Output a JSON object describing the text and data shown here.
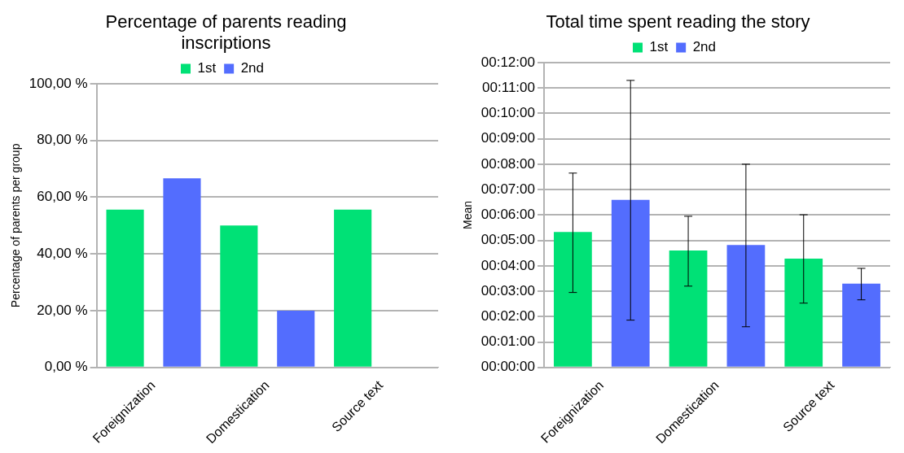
{
  "chart_data": [
    {
      "type": "bar",
      "title": "Percentage of parents reading inscriptions",
      "ylabel": "Percentage of parents per group",
      "categories": [
        "Foreignization",
        "Domestication",
        "Source text"
      ],
      "series": [
        {
          "name": "1st",
          "color": "#00e176",
          "values": [
            55.6,
            50,
            55.6
          ]
        },
        {
          "name": "2nd",
          "color": "#536dfe",
          "values": [
            66.7,
            20,
            0
          ]
        }
      ],
      "ylim": [
        0,
        100
      ],
      "yticks": [
        {
          "value": 0,
          "label": "0,00 %"
        },
        {
          "value": 20,
          "label": "20,00 %"
        },
        {
          "value": 40,
          "label": "40,00 %"
        },
        {
          "value": 60,
          "label": "60,00 %"
        },
        {
          "value": 80,
          "label": "80,00 %"
        },
        {
          "value": 100,
          "label": "100,00 %"
        }
      ],
      "grid": "y",
      "legend": "top"
    },
    {
      "type": "bar",
      "title": "Total time spent reading the story",
      "ylabel": "Mean",
      "categories": [
        "Foreignization",
        "Domestication",
        "Source text"
      ],
      "series": [
        {
          "name": "1st",
          "color": "#00e176",
          "values": [
            5.33,
            4.6,
            4.28
          ],
          "errors": [
            [
              2.95,
              7.65
            ],
            [
              3.2,
              5.95
            ],
            [
              2.53,
              6.01
            ]
          ]
        },
        {
          "name": "2nd",
          "color": "#536dfe",
          "values": [
            6.6,
            4.82,
            3.3
          ],
          "errors": [
            [
              1.86,
              11.3
            ],
            [
              1.6,
              8.0
            ],
            [
              2.66,
              3.9
            ]
          ]
        }
      ],
      "ylim": [
        0,
        12
      ],
      "yticks": [
        {
          "value": 0,
          "label": "00:00:00"
        },
        {
          "value": 1,
          "label": "00:01:00"
        },
        {
          "value": 2,
          "label": "00:02:00"
        },
        {
          "value": 3,
          "label": "00:03:00"
        },
        {
          "value": 4,
          "label": "00:04:00"
        },
        {
          "value": 5,
          "label": "00:05:00"
        },
        {
          "value": 6,
          "label": "00:06:00"
        },
        {
          "value": 7,
          "label": "00:07:00"
        },
        {
          "value": 8,
          "label": "00:08:00"
        },
        {
          "value": 9,
          "label": "00:09:00"
        },
        {
          "value": 10,
          "label": "00:10:00"
        },
        {
          "value": 11,
          "label": "00:11:00"
        },
        {
          "value": 12,
          "label": "00:12:00"
        }
      ],
      "grid": "y",
      "legend": "top"
    }
  ]
}
